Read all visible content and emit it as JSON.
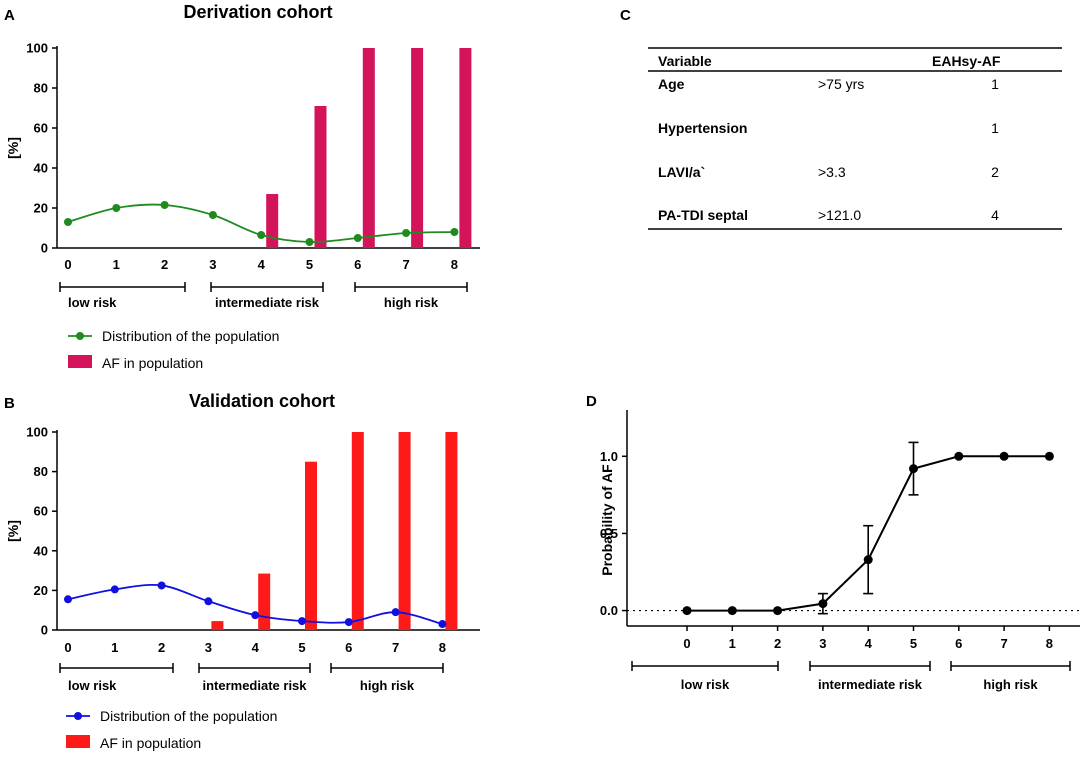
{
  "panel_letters": {
    "a": "A",
    "b": "B",
    "c": "C",
    "d": "D"
  },
  "chart_data": [
    {
      "id": "derivation",
      "type": "bar",
      "title": "Derivation cohort",
      "ylabel": "[%]",
      "ylim": [
        0,
        100
      ],
      "yticks": [
        0,
        20,
        40,
        60,
        80,
        100
      ],
      "categories": [
        "0",
        "1",
        "2",
        "3",
        "4",
        "5",
        "6",
        "7",
        "8"
      ],
      "series": [
        {
          "name": "Distribution of the population",
          "kind": "line",
          "color": "#1f8b1f",
          "values": [
            13,
            20,
            21.5,
            16.5,
            6.5,
            3,
            5,
            7.5,
            8
          ]
        },
        {
          "name": "AF in population",
          "kind": "bar",
          "color": "#d4145a",
          "values": [
            0,
            0,
            0,
            0,
            27,
            71,
            100,
            100,
            100
          ]
        }
      ],
      "risk_groups": [
        {
          "label": "low risk",
          "from": 0,
          "to": 2
        },
        {
          "label": "intermediate risk",
          "from": 3,
          "to": 5
        },
        {
          "label": "high risk",
          "from": 6,
          "to": 8
        }
      ]
    },
    {
      "id": "validation",
      "type": "bar",
      "title": "Validation cohort",
      "ylabel": "[%]",
      "ylim": [
        0,
        100
      ],
      "yticks": [
        0,
        20,
        40,
        60,
        80,
        100
      ],
      "categories": [
        "0",
        "1",
        "2",
        "3",
        "4",
        "5",
        "6",
        "7",
        "8"
      ],
      "series": [
        {
          "name": "Distribution of the population",
          "kind": "line",
          "color": "#1010e0",
          "values": [
            15.5,
            20.5,
            22.5,
            14.5,
            7.5,
            4.5,
            4,
            9,
            3
          ]
        },
        {
          "name": "AF in population",
          "kind": "bar",
          "color": "#ff1a1a",
          "values": [
            0,
            0,
            0,
            4.5,
            28.5,
            85,
            100,
            100,
            100
          ]
        }
      ],
      "risk_groups": [
        {
          "label": "low risk",
          "from": 0,
          "to": 2
        },
        {
          "label": "intermediate risk",
          "from": 3,
          "to": 5
        },
        {
          "label": "high risk",
          "from": 6,
          "to": 8
        }
      ]
    },
    {
      "id": "probability",
      "type": "line",
      "ylabel": "Probability of AF",
      "ylim": [
        -0.1,
        1.3
      ],
      "yticks": [
        "0.0",
        "0.5",
        "1.0"
      ],
      "yticks_values": [
        0,
        0.5,
        1.0
      ],
      "x": [
        0,
        1,
        2,
        3,
        4,
        5,
        6,
        7,
        8
      ],
      "categories": [
        "0",
        "1",
        "2",
        "3",
        "4",
        "5",
        "6",
        "7",
        "8"
      ],
      "series": [
        {
          "name": "Probability of AF",
          "color": "#000000",
          "values": [
            0,
            0,
            0,
            0.045,
            0.33,
            0.92,
            1.0,
            1.0,
            1.0
          ],
          "error_low": [
            0,
            0,
            0,
            -0.02,
            0.11,
            0.75,
            1.0,
            1.0,
            1.0
          ],
          "error_high": [
            0,
            0,
            0,
            0.11,
            0.55,
            1.09,
            1.0,
            1.0,
            1.0
          ]
        }
      ],
      "reference_line": 0,
      "risk_groups": [
        {
          "label": "low risk",
          "from": 0,
          "to": 2
        },
        {
          "label": "intermediate risk",
          "from": 3,
          "to": 5
        },
        {
          "label": "high risk",
          "from": 6,
          "to": 8
        }
      ]
    }
  ],
  "score_table": {
    "headers": [
      "Variable",
      "",
      "EAHsy-AF"
    ],
    "rows": [
      {
        "variable": "Age",
        "threshold": ">75 yrs",
        "points": "1"
      },
      {
        "variable": "Hypertension",
        "threshold": "",
        "points": "1"
      },
      {
        "variable": "LAVI/a`",
        "threshold": ">3.3",
        "points": "2"
      },
      {
        "variable": "PA-TDI septal",
        "threshold": ">121.0",
        "points": "4"
      }
    ]
  }
}
